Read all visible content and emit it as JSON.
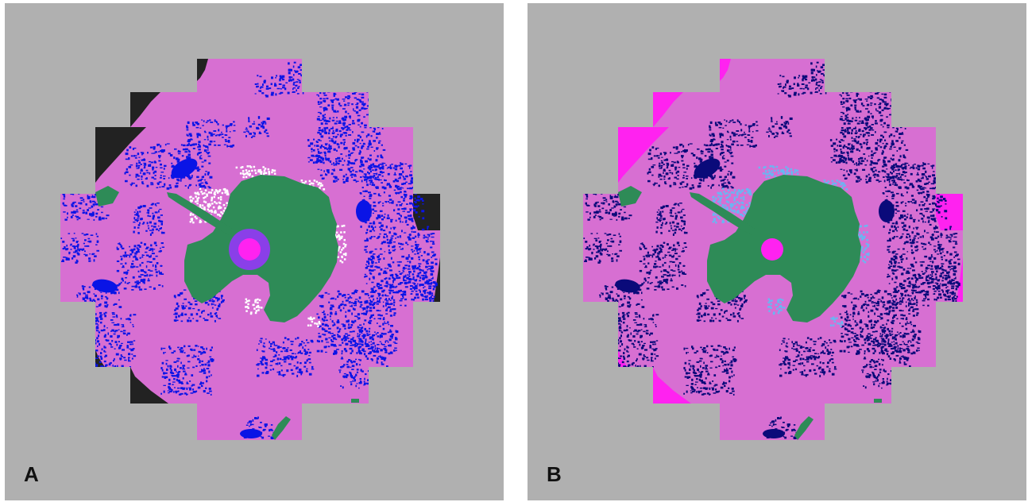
{
  "panels": [
    {
      "label": "A",
      "variant": "a"
    },
    {
      "label": "B",
      "variant": "b"
    }
  ],
  "colors": {
    "background": "#b0b0b0",
    "ocean_ice": "#d76fd2",
    "land": "#2e8b57",
    "speckle_a": "#0a14e6",
    "speckle_b": "#0a0a7a",
    "coastal_a": "#ffffff",
    "coastal_b": "#6ab6f2",
    "corner_a": "#222222",
    "corner_b": "#ff22f0",
    "pole_outer": "#8a3fe8",
    "pole_inner": "#ff22f0"
  },
  "icons": {
    "pole_hole": "circle-marker"
  }
}
